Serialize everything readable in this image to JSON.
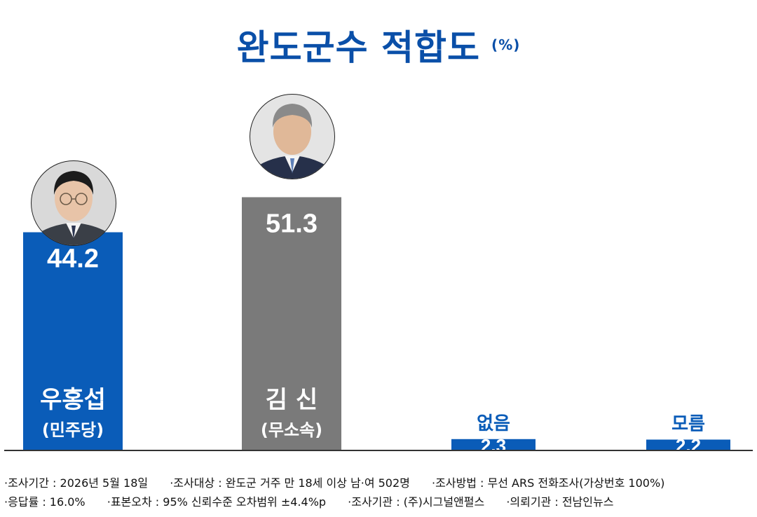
{
  "title": "완도군수 적합도",
  "unit": "(%)",
  "colors": {
    "blue": "#0a5cb8",
    "gray": "#7a7a7a",
    "title": "#0a4fa8",
    "axis": "#333333"
  },
  "chart_data": {
    "type": "bar",
    "title": "완도군수 적합도",
    "unit": "(%)",
    "categories": [
      "우홍섭",
      "김 신",
      "없음",
      "모름"
    ],
    "parties": [
      "(민주당)",
      "(무소속)",
      "",
      ""
    ],
    "values": [
      44.2,
      51.3,
      2.3,
      2.2
    ],
    "value_labels": [
      "44.2",
      "51.3",
      "2.3",
      "2.2"
    ],
    "bar_colors": [
      "#0a5cb8",
      "#7a7a7a",
      "#0a5cb8",
      "#0a5cb8"
    ],
    "ylim": [
      0,
      59.6
    ],
    "grid": false,
    "legend": "none"
  },
  "footer": {
    "line1": [
      "·조사기간 : 2026년 5월 18일",
      "·조사대상 : 완도군 거주 만 18세 이상 남·여 502명",
      "·조사방법 : 무선 ARS 전화조사(가상번호 100%)"
    ],
    "line2": [
      "·응답률 : 16.0%",
      "·표본오차 : 95% 신뢰수준 오차범위 ±4.4%p",
      "·조사기관 : (주)시그널앤펄스",
      "·의뢰기관 : 전남인뉴스"
    ]
  }
}
